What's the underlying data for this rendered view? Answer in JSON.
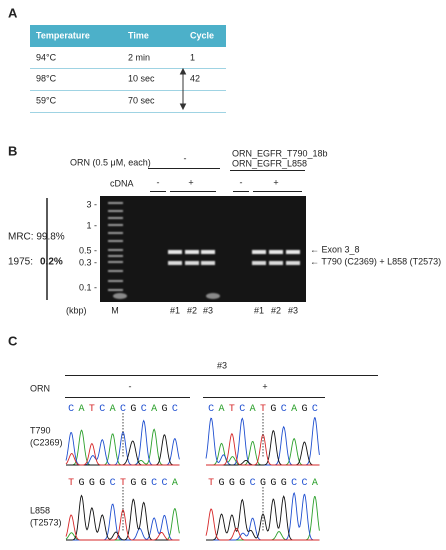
{
  "panel_a": {
    "label": "A",
    "table": {
      "header": [
        "Temperature",
        "Time",
        "Cycle"
      ],
      "rows": [
        [
          "94°C",
          "2 min",
          "1"
        ],
        [
          "98°C",
          "10 sec",
          "42"
        ],
        [
          "59°C",
          "70 sec"
        ]
      ]
    }
  },
  "panel_b": {
    "label": "B",
    "orn_label": "ORN (0.5 μM, each)",
    "orn_left": "-",
    "orn_right": [
      "ORN_EGFR_T790_18b",
      "ORN_EGFR_L858"
    ],
    "cdna_label": "cDNA",
    "cdna": [
      "-",
      "+",
      "-",
      "+"
    ],
    "ladder": [
      "3 -",
      "1 -",
      "0.5 -",
      "0.3 -",
      "0.1 -"
    ],
    "unit": "(kbp)",
    "marker": "M",
    "lanes": [
      "#1",
      "#2",
      "#3",
      "#1",
      "#2",
      "#3"
    ],
    "mrc": "MRC: 99.8%",
    "ratio_label": "1975:",
    "ratio_value": "0.2%",
    "bands": [
      "← Exon 3_8",
      "← T790 (C2369) + L858 (T2573)"
    ]
  },
  "panel_c": {
    "label": "C",
    "sample": "#3",
    "orn_label": "ORN",
    "orn": [
      "-",
      "+"
    ],
    "rows": [
      {
        "name": [
          "T790",
          "(C2369)"
        ],
        "sequences": [
          "CATCACGCAGC",
          "CATCATGCAGC"
        ]
      },
      {
        "name": [
          "L858",
          "(T2573)"
        ],
        "sequences": [
          "TGGGCTGGCCA",
          "TGGGCGGGCCA"
        ]
      }
    ]
  }
}
